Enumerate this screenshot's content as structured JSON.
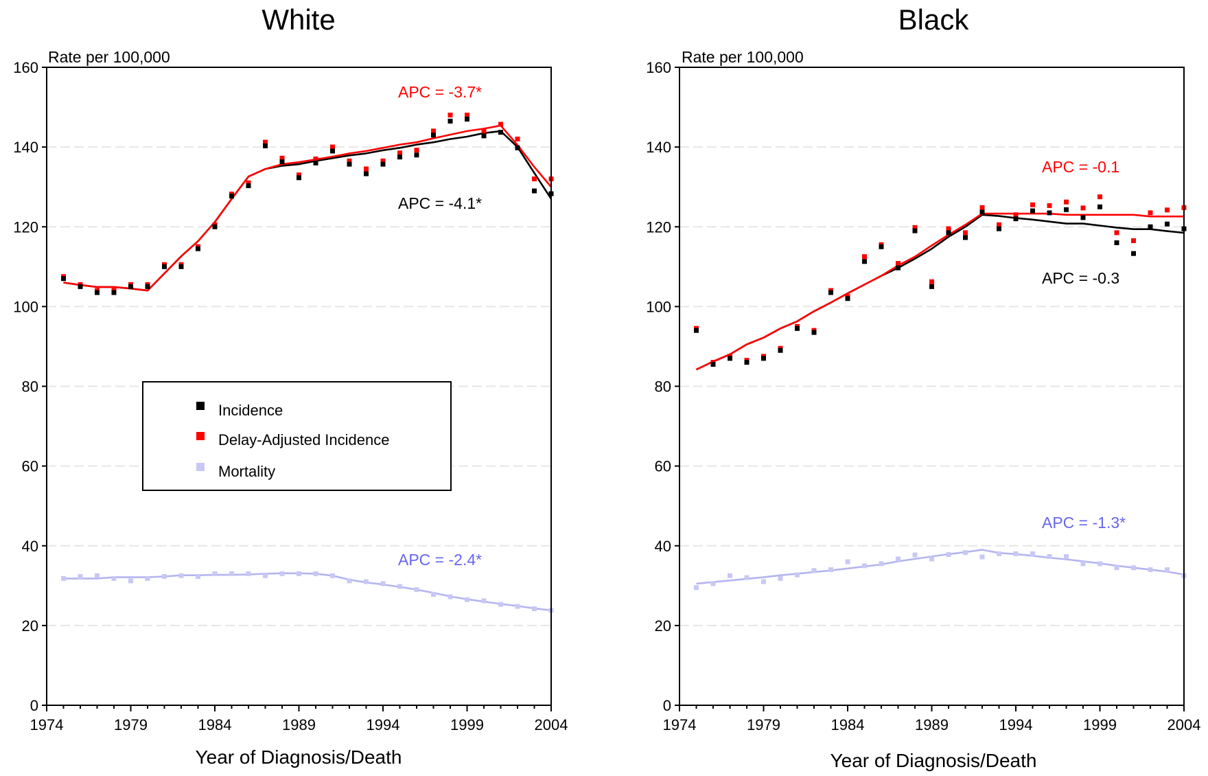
{
  "figure": {
    "xlabel": "Year of Diagnosis/Death",
    "ylabel": "Rate per 100,000"
  },
  "legend": {
    "items": [
      {
        "label": "Incidence",
        "color": "#000000"
      },
      {
        "label": "Delay-Adjusted Incidence",
        "color": "#ff0000"
      },
      {
        "label": "Mortality",
        "color": "#c8c8f5"
      }
    ]
  },
  "colors": {
    "incidence": "#000000",
    "delay": "#ff0000",
    "mortality_points": "#c8c8f5",
    "mortality_line": "#b4b4f0",
    "apc_mortality_text": "#6666ee",
    "gridline": "#e6e6e6"
  },
  "chart_data": [
    {
      "type": "scatter",
      "title": "White",
      "xlabel": "Year of Diagnosis/Death",
      "ylabel": "Rate per 100,000",
      "xlim": [
        1974,
        2004
      ],
      "ylim": [
        0,
        160
      ],
      "xticks": [
        1974,
        1979,
        1984,
        1989,
        1994,
        1999,
        2004
      ],
      "yticks": [
        0,
        20,
        40,
        60,
        80,
        100,
        120,
        140,
        160
      ],
      "grid": true,
      "legend_position": "center-left",
      "x": [
        1975,
        1976,
        1977,
        1978,
        1979,
        1980,
        1981,
        1982,
        1983,
        1984,
        1985,
        1986,
        1987,
        1988,
        1989,
        1990,
        1991,
        1992,
        1993,
        1994,
        1995,
        1996,
        1997,
        1998,
        1999,
        2000,
        2001,
        2002,
        2003,
        2004
      ],
      "series": [
        {
          "name": "Incidence",
          "kind": "points",
          "color": "#000000",
          "values": [
            107.0,
            105.0,
            103.5,
            103.5,
            105.0,
            105.0,
            110.0,
            110.0,
            114.5,
            120.0,
            127.7,
            130.3,
            140.3,
            136.3,
            132.3,
            136.0,
            139.0,
            135.7,
            133.3,
            135.7,
            137.5,
            138.0,
            143.0,
            146.5,
            147.0,
            142.8,
            143.7,
            139.8,
            129.0,
            128.3
          ]
        },
        {
          "name": "Delay-Adjusted Incidence",
          "kind": "points",
          "color": "#ff0000",
          "values": [
            107.0,
            105.0,
            103.5,
            103.5,
            105.0,
            105.0,
            110.0,
            110.0,
            114.5,
            120.0,
            127.7,
            130.5,
            140.7,
            136.7,
            132.5,
            136.5,
            139.5,
            136.0,
            134.0,
            136.0,
            138.0,
            138.7,
            143.5,
            147.5,
            147.5,
            143.5,
            145.2,
            141.5,
            131.5,
            131.5
          ]
        },
        {
          "name": "Mortality",
          "kind": "points",
          "color": "#c8c8f5",
          "values": [
            31.8,
            32.3,
            32.5,
            31.8,
            31.2,
            31.8,
            32.3,
            32.5,
            32.3,
            33.0,
            33.0,
            33.0,
            32.5,
            33.0,
            33.0,
            33.0,
            32.5,
            31.2,
            31.0,
            30.5,
            29.8,
            29.0,
            27.8,
            27.2,
            26.5,
            26.2,
            25.3,
            24.8,
            24.2,
            23.8
          ]
        },
        {
          "name": "Incidence trend",
          "kind": "line",
          "color": "#000000",
          "values": [
            106.0,
            105.4,
            104.9,
            104.9,
            104.5,
            104.0,
            108.3,
            112.6,
            116.4,
            121.2,
            127.0,
            132.6,
            134.5,
            135.3,
            135.7,
            136.5,
            137.2,
            137.9,
            138.4,
            139.2,
            139.8,
            140.6,
            141.2,
            142.0,
            142.6,
            143.5,
            144.0,
            140.0,
            133.5,
            127.0
          ]
        },
        {
          "name": "Delay-Adjusted Incidence trend",
          "kind": "line",
          "color": "#ff0000",
          "values": [
            106.0,
            105.4,
            104.9,
            104.9,
            104.5,
            104.0,
            108.3,
            112.6,
            116.4,
            121.2,
            127.0,
            132.6,
            134.5,
            135.7,
            136.2,
            136.9,
            137.6,
            138.4,
            139.0,
            139.8,
            140.6,
            141.2,
            142.2,
            143.1,
            144.0,
            144.6,
            145.4,
            140.5,
            135.0,
            130.0
          ]
        },
        {
          "name": "Mortality trend",
          "kind": "line",
          "color": "#b4b4f0",
          "values": [
            31.8,
            31.8,
            31.8,
            32.1,
            32.1,
            32.1,
            32.3,
            32.6,
            32.6,
            32.7,
            32.7,
            32.8,
            33.0,
            33.1,
            33.1,
            33.0,
            32.5,
            31.5,
            30.8,
            30.3,
            29.7,
            29.0,
            28.2,
            27.3,
            26.6,
            26.0,
            25.4,
            24.9,
            24.3,
            23.8
          ]
        }
      ],
      "annotations": [
        {
          "text": "APC = -3.7*",
          "x": 2000.4,
          "y": 152,
          "series": "delay"
        },
        {
          "text": "APC = -4.1*",
          "x": 2000.4,
          "y": 123,
          "series": "incidence"
        },
        {
          "text": "APC = -2.4*",
          "x": 2000.4,
          "y": 36,
          "series": "mortality"
        }
      ]
    },
    {
      "type": "scatter",
      "title": "Black",
      "xlabel": "Year of Diagnosis/Death",
      "ylabel": "Rate per 100,000",
      "xlim": [
        1974,
        2004
      ],
      "ylim": [
        0,
        160
      ],
      "xticks": [
        1974,
        1979,
        1984,
        1989,
        1994,
        1999,
        2004
      ],
      "yticks": [
        0,
        20,
        40,
        60,
        80,
        100,
        120,
        140,
        160
      ],
      "grid": true,
      "x": [
        1975,
        1976,
        1977,
        1978,
        1979,
        1980,
        1981,
        1982,
        1983,
        1984,
        1985,
        1986,
        1987,
        1988,
        1989,
        1990,
        1991,
        1992,
        1993,
        1994,
        1995,
        1996,
        1997,
        1998,
        1999,
        2000,
        2001,
        2002,
        2003,
        2004
      ],
      "series": [
        {
          "name": "Incidence",
          "kind": "points",
          "color": "#000000",
          "values": [
            94.0,
            85.5,
            87.0,
            86.0,
            87.0,
            89.0,
            94.5,
            93.5,
            103.5,
            102.0,
            111.3,
            115.0,
            109.7,
            119.0,
            105.0,
            118.5,
            117.3,
            123.7,
            119.5,
            122.0,
            124.0,
            123.5,
            124.3,
            122.3,
            125.0,
            116.0,
            113.3,
            120.0,
            120.7,
            119.5
          ]
        },
        {
          "name": "Delay-Adjusted Incidence",
          "kind": "points",
          "color": "#ff0000",
          "values": [
            94.0,
            85.5,
            87.0,
            86.0,
            87.0,
            89.0,
            94.5,
            93.5,
            103.5,
            102.0,
            112.0,
            115.0,
            110.3,
            119.3,
            105.7,
            119.0,
            118.0,
            124.3,
            120.0,
            122.5,
            125.0,
            124.8,
            125.7,
            124.2,
            127.0,
            118.0,
            116.0,
            123.0,
            123.7,
            124.3
          ]
        },
        {
          "name": "Mortality",
          "kind": "points",
          "color": "#c8c8f5",
          "values": [
            29.5,
            30.5,
            32.5,
            32.0,
            31.0,
            31.8,
            32.7,
            33.8,
            34.0,
            36.0,
            35.0,
            35.5,
            36.7,
            37.7,
            36.7,
            37.8,
            38.3,
            37.2,
            38.0,
            38.0,
            38.0,
            37.3,
            37.3,
            35.5,
            35.5,
            34.5,
            34.5,
            34.0,
            34.0,
            32.5
          ]
        },
        {
          "name": "Incidence trend",
          "kind": "line",
          "color": "#000000",
          "values": [
            84.2,
            86.2,
            88.0,
            90.5,
            92.2,
            94.5,
            96.3,
            98.8,
            101.0,
            103.3,
            105.5,
            107.7,
            109.7,
            112.0,
            114.5,
            117.5,
            120.0,
            123.0,
            122.7,
            122.2,
            121.8,
            121.3,
            120.8,
            120.8,
            120.3,
            119.8,
            119.4,
            119.4,
            118.9,
            118.5
          ]
        },
        {
          "name": "Delay-Adjusted Incidence trend",
          "kind": "line",
          "color": "#ff0000",
          "values": [
            84.2,
            86.2,
            88.0,
            90.5,
            92.2,
            94.5,
            96.3,
            98.8,
            101.0,
            103.3,
            105.5,
            107.7,
            110.3,
            112.5,
            115.3,
            118.0,
            120.5,
            123.3,
            123.3,
            123.3,
            123.3,
            123.3,
            123.0,
            123.0,
            123.0,
            123.0,
            123.0,
            122.6,
            122.6,
            122.6
          ]
        },
        {
          "name": "Mortality trend",
          "kind": "line",
          "color": "#b4b4f0",
          "values": [
            30.5,
            30.9,
            31.3,
            31.7,
            32.1,
            32.6,
            33.0,
            33.4,
            33.8,
            34.3,
            34.8,
            35.3,
            36.1,
            36.7,
            37.3,
            37.9,
            38.4,
            39.0,
            38.2,
            37.9,
            37.5,
            37.0,
            36.6,
            36.1,
            35.6,
            35.0,
            34.5,
            34.0,
            33.5,
            32.8
          ]
        }
      ],
      "annotations": [
        {
          "text": "APC = -0.1",
          "x": 2000.4,
          "y": 133,
          "series": "delay"
        },
        {
          "text": "APC = -0.3",
          "x": 2000.4,
          "y": 104,
          "series": "incidence"
        },
        {
          "text": "APC = -1.3*",
          "x": 2000.4,
          "y": 44,
          "series": "mortality"
        }
      ]
    }
  ]
}
